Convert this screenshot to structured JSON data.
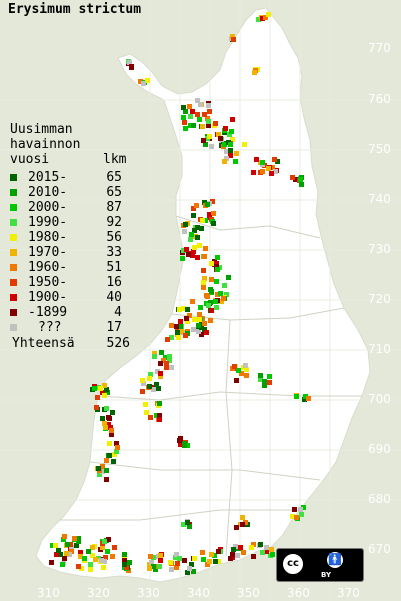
{
  "title": "Erysimum strictum",
  "legend": {
    "heading": [
      "Uusimman",
      "havainnon",
      "vuosi"
    ],
    "count_header": "lkm",
    "rows": [
      {
        "label": "2015-",
        "count": "65",
        "color": "#006400"
      },
      {
        "label": "2010-",
        "count": "65",
        "color": "#00a000"
      },
      {
        "label": "2000-",
        "count": "87",
        "color": "#00c800"
      },
      {
        "label": "1990-",
        "count": "92",
        "color": "#40e040"
      },
      {
        "label": "1980-",
        "count": "56",
        "color": "#f0f000"
      },
      {
        "label": "1970-",
        "count": "33",
        "color": "#f0b400"
      },
      {
        "label": "1960-",
        "count": "51",
        "color": "#f07800"
      },
      {
        "label": "1950-",
        "count": "16",
        "color": "#e03c00"
      },
      {
        "label": "1900-",
        "count": "40",
        "color": "#d00000"
      },
      {
        "label": "-1899",
        "count": "4",
        "color": "#800000"
      },
      {
        "label": "???",
        "count": "17",
        "color": "#c0c0c0"
      }
    ],
    "total_label": "Yhteensä",
    "total_count": "526"
  },
  "grid_y_labels": [
    "770",
    "760",
    "750",
    "740",
    "730",
    "720",
    "710",
    "700",
    "690",
    "680",
    "670"
  ],
  "grid_x_labels": [
    "310",
    "320",
    "330",
    "340",
    "350",
    "360",
    "370"
  ],
  "license": {
    "text": "BY",
    "icons": [
      "cc-icon",
      "attribution-icon"
    ]
  },
  "colors": {
    "background": "#e3e8d8",
    "land": "#ffffff",
    "borders": "#c8ccc0",
    "grid_labels": "#ffffff"
  }
}
